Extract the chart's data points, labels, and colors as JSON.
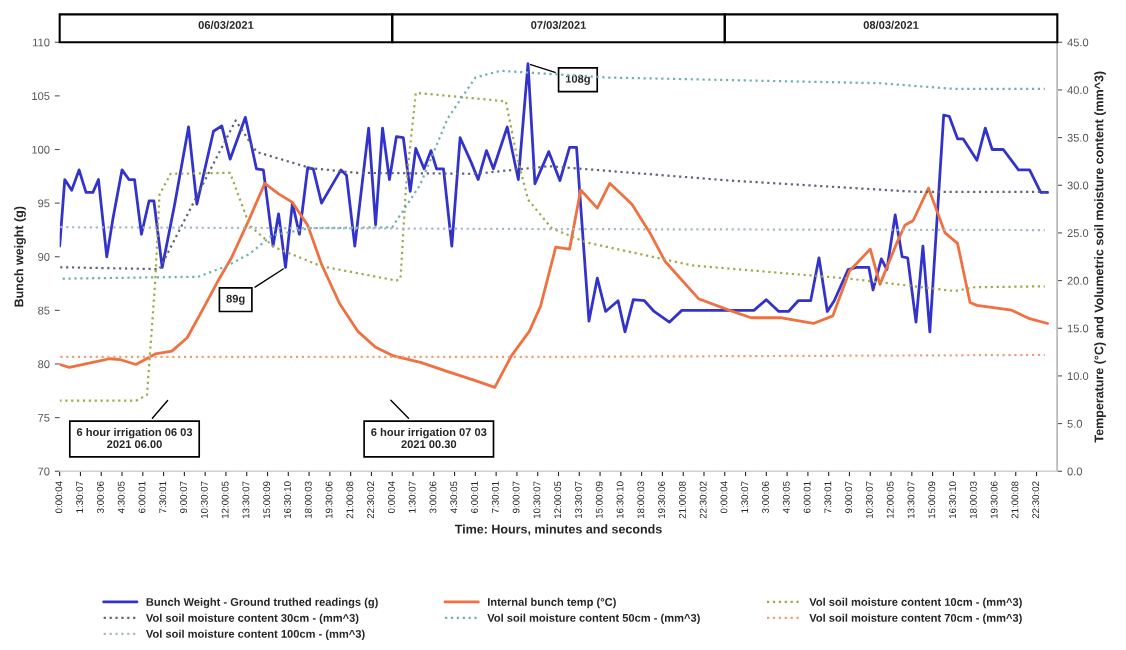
{
  "chart_data": {
    "type": "line",
    "xlabel": "Time: Hours, minutes and seconds",
    "ylabel": "Bunch weight (g)",
    "y2label": "Temperature (°C) and Volumetric soil moisture content (mm^3)",
    "xlim": [
      "2021-03-06T00:00",
      "2021-03-09T00:00"
    ],
    "xticks": [
      {
        "value": "2021-03-06T00:00",
        "label": "0:00:04"
      },
      {
        "value": "2021-03-06T01:30",
        "label": "1:30:07"
      },
      {
        "value": "2021-03-06T03:00",
        "label": "3:00:06"
      },
      {
        "value": "2021-03-06T04:30",
        "label": "4:30:05"
      },
      {
        "value": "2021-03-06T06:00",
        "label": "6:00:01"
      },
      {
        "value": "2021-03-06T07:30",
        "label": "7:30:01"
      },
      {
        "value": "2021-03-06T09:00",
        "label": "9:00:07"
      },
      {
        "value": "2021-03-06T10:30",
        "label": "10:30:07"
      },
      {
        "value": "2021-03-06T12:00",
        "label": "12:00:05"
      },
      {
        "value": "2021-03-06T13:30",
        "label": "13:30:07"
      },
      {
        "value": "2021-03-06T15:00",
        "label": "15:00:09"
      },
      {
        "value": "2021-03-06T16:30",
        "label": "16:30:10"
      },
      {
        "value": "2021-03-06T18:00",
        "label": "18:00:03"
      },
      {
        "value": "2021-03-06T19:30",
        "label": "19:30:06"
      },
      {
        "value": "2021-03-06T21:00",
        "label": "21:00:08"
      },
      {
        "value": "2021-03-06T22:30",
        "label": "22:30:02"
      },
      {
        "value": "2021-03-07T00:00",
        "label": "0:00:04"
      },
      {
        "value": "2021-03-07T01:30",
        "label": "1:30:07"
      },
      {
        "value": "2021-03-07T03:00",
        "label": "3:00:06"
      },
      {
        "value": "2021-03-07T04:30",
        "label": "4:30:05"
      },
      {
        "value": "2021-03-07T06:00",
        "label": "6:00:01"
      },
      {
        "value": "2021-03-07T07:30",
        "label": "7:30:01"
      },
      {
        "value": "2021-03-07T09:00",
        "label": "9:00:07"
      },
      {
        "value": "2021-03-07T10:30",
        "label": "10:30:07"
      },
      {
        "value": "2021-03-07T12:00",
        "label": "12:00:05"
      },
      {
        "value": "2021-03-07T13:30",
        "label": "13:30:07"
      },
      {
        "value": "2021-03-07T15:00",
        "label": "15:00:09"
      },
      {
        "value": "2021-03-07T16:30",
        "label": "16:30:10"
      },
      {
        "value": "2021-03-07T18:00",
        "label": "18:00:03"
      },
      {
        "value": "2021-03-07T19:30",
        "label": "19:30:06"
      },
      {
        "value": "2021-03-07T21:00",
        "label": "21:00:08"
      },
      {
        "value": "2021-03-07T22:30",
        "label": "22:30:02"
      },
      {
        "value": "2021-03-08T00:00",
        "label": "0:00:04"
      },
      {
        "value": "2021-03-08T01:30",
        "label": "1:30:07"
      },
      {
        "value": "2021-03-08T03:00",
        "label": "3:00:06"
      },
      {
        "value": "2021-03-08T04:30",
        "label": "4:30:05"
      },
      {
        "value": "2021-03-08T06:00",
        "label": "6:00:01"
      },
      {
        "value": "2021-03-08T07:30",
        "label": "7:30:01"
      },
      {
        "value": "2021-03-08T09:00",
        "label": "9:00:07"
      },
      {
        "value": "2021-03-08T10:30",
        "label": "10:30:07"
      },
      {
        "value": "2021-03-08T12:00",
        "label": "12:00:05"
      },
      {
        "value": "2021-03-08T13:30",
        "label": "13:30:07"
      },
      {
        "value": "2021-03-08T15:00",
        "label": "15:00:09"
      },
      {
        "value": "2021-03-08T16:30",
        "label": "16:30:10"
      },
      {
        "value": "2021-03-08T18:00",
        "label": "18:00:03"
      },
      {
        "value": "2021-03-08T19:30",
        "label": "19:30:06"
      },
      {
        "value": "2021-03-08T21:00",
        "label": "21:00:08"
      },
      {
        "value": "2021-03-08T22:30",
        "label": "22:30:02"
      }
    ],
    "x2lim": [
      "2021-03-06T00:00",
      "2021-03-09T00:00"
    ],
    "x2ticks": [
      {
        "value": "2021-03-06T12:00",
        "label": "06/03/2021"
      },
      {
        "value": "2021-03-07T12:00",
        "label": "07/03/2021"
      },
      {
        "value": "2021-03-08T12:00",
        "label": "08/03/2021"
      }
    ],
    "ylim": [
      70,
      110
    ],
    "yticks": [
      70,
      75,
      80,
      85,
      90,
      95,
      100,
      105,
      110
    ],
    "y2lim": [
      0,
      45
    ],
    "y2ticks": [
      {
        "value": 0,
        "label": "0.0"
      },
      {
        "value": 5,
        "label": "5.0"
      },
      {
        "value": 10,
        "label": "10.0"
      },
      {
        "value": 15,
        "label": "15.0"
      },
      {
        "value": 20,
        "label": "20.0"
      },
      {
        "value": 25,
        "label": "25.0"
      },
      {
        "value": 30,
        "label": "30.0"
      },
      {
        "value": 35,
        "label": "35.0"
      },
      {
        "value": 40,
        "label": "40.0"
      },
      {
        "value": 45,
        "label": "45.0"
      }
    ],
    "annotations": [
      {
        "text": "89g",
        "x": "2021-03-06T16:18",
        "y": 89
      },
      {
        "text": "108g",
        "x": "2021-03-07T09:48",
        "y": 108
      },
      "6 hour irrigation 06 03\n2021 06.00",
      "6 hour irrigation 07 03\n2021 00.30"
    ],
    "legend": "bottom",
    "grid": false,
    "series": [
      {
        "name": "Bunch Weight - Ground truthed readings (g)",
        "color": "#3333cc",
        "line_style": "solid",
        "x": [
          "2021-03-06T00:00",
          "2021-03-06T00:22",
          "2021-03-06T00:52",
          "2021-03-06T01:24",
          "2021-03-06T01:54",
          "2021-03-06T02:24",
          "2021-03-06T02:48",
          "2021-03-06T03:24",
          "2021-03-06T03:51",
          "2021-03-06T04:30",
          "2021-03-06T05:00",
          "2021-03-06T05:24",
          "2021-03-06T05:54",
          "2021-03-06T06:27",
          "2021-03-06T06:48",
          "2021-03-06T07:24",
          "2021-03-06T08:18",
          "2021-03-06T09:18",
          "2021-03-06T09:54",
          "2021-03-06T11:06",
          "2021-03-06T11:42",
          "2021-03-06T12:18",
          "2021-03-06T13:24",
          "2021-03-06T14:12",
          "2021-03-06T14:42",
          "2021-03-06T15:24",
          "2021-03-06T15:48",
          "2021-03-06T16:18",
          "2021-03-06T16:48",
          "2021-03-06T17:18",
          "2021-03-06T17:54",
          "2021-03-06T18:18",
          "2021-03-06T18:54",
          "2021-03-06T20:18",
          "2021-03-06T20:42",
          "2021-03-06T21:18",
          "2021-03-06T22:18",
          "2021-03-06T22:48",
          "2021-03-06T23:18",
          "2021-03-06T23:48",
          "2021-03-07T00:18",
          "2021-03-07T00:48",
          "2021-03-07T01:18",
          "2021-03-07T01:42",
          "2021-03-07T02:18",
          "2021-03-07T02:48",
          "2021-03-07T03:12",
          "2021-03-07T03:42",
          "2021-03-07T04:18",
          "2021-03-07T04:54",
          "2021-03-07T05:42",
          "2021-03-07T06:12",
          "2021-03-07T06:48",
          "2021-03-07T07:18",
          "2021-03-07T08:18",
          "2021-03-07T09:06",
          "2021-03-07T09:48",
          "2021-03-07T10:18",
          "2021-03-07T11:18",
          "2021-03-07T12:06",
          "2021-03-07T12:48",
          "2021-03-07T13:18",
          "2021-03-07T14:12",
          "2021-03-07T14:48",
          "2021-03-07T15:24",
          "2021-03-07T16:18",
          "2021-03-07T16:48",
          "2021-03-07T17:24",
          "2021-03-07T18:12",
          "2021-03-07T18:54",
          "2021-03-07T20:00",
          "2021-03-07T20:54",
          "2021-03-08T01:24",
          "2021-03-08T02:06",
          "2021-03-08T03:00",
          "2021-03-08T03:54",
          "2021-03-08T04:36",
          "2021-03-08T05:18",
          "2021-03-08T06:12",
          "2021-03-08T06:48",
          "2021-03-08T07:24",
          "2021-03-08T07:54",
          "2021-03-08T08:54",
          "2021-03-08T09:30",
          "2021-03-08T10:24",
          "2021-03-08T10:42",
          "2021-03-08T11:18",
          "2021-03-08T11:42",
          "2021-03-08T12:18",
          "2021-03-08T12:48",
          "2021-03-08T13:12",
          "2021-03-08T13:48",
          "2021-03-08T14:18",
          "2021-03-08T14:48",
          "2021-03-08T15:48",
          "2021-03-08T16:12",
          "2021-03-08T16:48",
          "2021-03-08T17:12",
          "2021-03-08T18:12",
          "2021-03-08T18:48",
          "2021-03-08T19:18",
          "2021-03-08T20:06",
          "2021-03-08T21:12",
          "2021-03-08T22:00",
          "2021-03-08T22:48",
          "2021-03-08T23:18"
        ],
        "values": [
          91,
          97.2,
          96.2,
          98.1,
          96,
          96,
          97.2,
          90,
          93.6,
          98.1,
          97.2,
          97.2,
          92.1,
          95.2,
          95.2,
          89,
          94.9,
          102.1,
          94.9,
          101.7,
          102.2,
          99.1,
          103,
          98.2,
          98.1,
          91,
          94,
          89,
          95,
          92.1,
          98.3,
          98.2,
          95,
          98.1,
          97.6,
          91,
          102,
          93,
          102,
          97.2,
          101.2,
          101.1,
          96.1,
          100.1,
          98.2,
          99.9,
          98.2,
          98.2,
          91,
          101.1,
          98.8,
          97.2,
          99.9,
          98.2,
          102.1,
          97.2,
          108,
          96.8,
          99.8,
          97.1,
          100.2,
          100.2,
          84,
          88,
          84.9,
          85.9,
          83,
          86,
          85.9,
          84.9,
          83.9,
          85,
          85,
          85,
          86,
          84.9,
          84.9,
          85.9,
          85.9,
          89.9,
          84.9,
          85.9,
          88.8,
          89,
          89,
          86.9,
          89.8,
          88.8,
          93.9,
          90,
          89.9,
          83.9,
          91,
          83,
          103.2,
          103.1,
          101,
          101,
          99,
          102,
          100,
          100,
          98.1,
          98.1,
          96,
          96
        ]
      },
      {
        "name": "Internal bunch temp (°C)",
        "color": "#f07040",
        "line_style": "solid",
        "axis": "y2",
        "x": [
          "2021-03-06T00:00",
          "2021-03-06T00:42",
          "2021-03-06T02:18",
          "2021-03-06T03:36",
          "2021-03-06T04:24",
          "2021-03-06T05:30",
          "2021-03-06T06:54",
          "2021-03-06T08:06",
          "2021-03-06T09:12",
          "2021-03-06T10:18",
          "2021-03-06T11:24",
          "2021-03-06T12:24",
          "2021-03-06T13:42",
          "2021-03-06T14:48",
          "2021-03-06T15:48",
          "2021-03-06T16:48",
          "2021-03-06T17:54",
          "2021-03-06T18:54",
          "2021-03-06T20:12",
          "2021-03-06T21:30",
          "2021-03-06T22:48",
          "2021-03-07T00:06",
          "2021-03-07T02:06",
          "2021-03-07T03:54",
          "2021-03-07T06:00",
          "2021-03-07T07:24",
          "2021-03-07T08:36",
          "2021-03-07T09:54",
          "2021-03-07T10:42",
          "2021-03-07T11:48",
          "2021-03-07T12:48",
          "2021-03-07T13:36",
          "2021-03-07T14:48",
          "2021-03-07T15:42",
          "2021-03-07T17:18",
          "2021-03-07T18:36",
          "2021-03-07T19:42",
          "2021-03-07T22:06",
          "2021-03-08T00:18",
          "2021-03-08T01:54",
          "2021-03-08T04:06",
          "2021-03-08T06:24",
          "2021-03-08T07:48",
          "2021-03-08T09:00",
          "2021-03-08T10:30",
          "2021-03-08T11:12",
          "2021-03-08T12:24",
          "2021-03-08T13:00",
          "2021-03-08T13:36",
          "2021-03-08T14:42",
          "2021-03-08T15:54",
          "2021-03-08T16:48",
          "2021-03-08T17:42",
          "2021-03-08T18:12",
          "2021-03-08T20:42",
          "2021-03-08T22:00",
          "2021-03-08T23:18"
        ],
        "values": [
          11.2,
          10.9,
          11.4,
          11.8,
          11.7,
          11.2,
          12.3,
          12.6,
          14,
          16.9,
          19.9,
          22.4,
          26.5,
          30.2,
          29.1,
          28.2,
          25.8,
          21.7,
          17.6,
          14.7,
          13,
          12.1,
          11.4,
          10.5,
          9.5,
          8.8,
          12.1,
          14.7,
          17.3,
          23.5,
          23.3,
          29.5,
          27.6,
          30.2,
          28,
          25,
          22,
          18.1,
          16.9,
          16.1,
          16.1,
          15.5,
          16.3,
          21,
          23.3,
          19.6,
          23.9,
          25.8,
          26.3,
          29.7,
          25,
          23.9,
          17.7,
          17.4,
          16.9,
          16,
          15.5
        ]
      },
      {
        "name": "Vol soil moisture content 10cm - (mm^3)",
        "color": "#a3a84a",
        "line_style": "dotted",
        "axis": "y2",
        "x": [
          "2021-03-06T00:00",
          "2021-03-06T05:30",
          "2021-03-06T06:18",
          "2021-03-06T06:54",
          "2021-03-06T07:12",
          "2021-03-06T08:00",
          "2021-03-06T12:18",
          "2021-03-06T13:42",
          "2021-03-06T15:30",
          "2021-03-06T18:54",
          "2021-03-07T00:18",
          "2021-03-07T00:36",
          "2021-03-07T01:00",
          "2021-03-07T01:42",
          "2021-03-07T08:12",
          "2021-03-07T09:00",
          "2021-03-07T09:48",
          "2021-03-07T11:30",
          "2021-03-07T14:00",
          "2021-03-07T21:36",
          "2021-03-08T09:00",
          "2021-03-08T16:36",
          "2021-03-08T18:00",
          "2021-03-08T23:06"
        ],
        "values": [
          7.4,
          7.4,
          8,
          20,
          29,
          31.2,
          31.3,
          25.8,
          23.5,
          21.5,
          20,
          20.2,
          30,
          39.7,
          38.8,
          33,
          28.5,
          25.5,
          24,
          21.6,
          20.2,
          18.9,
          19.3,
          19.4
        ]
      },
      {
        "name": "Vol soil moisture content 30cm - (mm^3)",
        "color": "#5c6478",
        "line_style": "dotted",
        "axis": "y2",
        "x": [
          "2021-03-06T00:00",
          "2021-03-06T07:12",
          "2021-03-06T12:42",
          "2021-03-06T14:12",
          "2021-03-06T18:06",
          "2021-03-06T21:30",
          "2021-03-07T06:00",
          "2021-03-07T11:18",
          "2021-03-08T00:18",
          "2021-03-08T13:54",
          "2021-03-08T23:06"
        ],
        "values": [
          21.4,
          21.2,
          36.8,
          33.5,
          31.8,
          31.3,
          31.2,
          32,
          30.5,
          29.3,
          29.3
        ]
      },
      {
        "name": "Vol soil moisture content 50cm - (mm^3)",
        "color": "#6fb0b0",
        "line_style": "dotted",
        "axis": "y2",
        "x": [
          "2021-03-06T00:00",
          "2021-03-06T10:00",
          "2021-03-06T12:00",
          "2021-03-06T13:42",
          "2021-03-06T15:18",
          "2021-03-06T18:00",
          "2021-03-07T00:00",
          "2021-03-07T02:00",
          "2021-03-07T04:00",
          "2021-03-07T06:00",
          "2021-03-07T07:48",
          "2021-03-07T15:36",
          "2021-03-08T11:12",
          "2021-03-08T16:36",
          "2021-03-08T23:06"
        ],
        "values": [
          20.2,
          20.4,
          21.5,
          22.8,
          24.7,
          25.5,
          25.6,
          30,
          37,
          41.3,
          42,
          41.3,
          40.7,
          40.1,
          40.1
        ]
      },
      {
        "name": "Vol soil moisture content 70cm - (mm^3)",
        "color": "#f0a070",
        "line_style": "dotted",
        "axis": "y2",
        "x": [
          "2021-03-06T00:00",
          "2021-03-07T12:00",
          "2021-03-08T23:06"
        ],
        "values": [
          12,
          12,
          12.2
        ]
      },
      {
        "name": "Vol soil moisture content 100cm - (mm^3)",
        "color": "#a8b8cc",
        "line_style": "dotted",
        "axis": "y2",
        "x": [
          "2021-03-06T00:00",
          "2021-03-07T12:00",
          "2021-03-08T23:06"
        ],
        "values": [
          25.6,
          25.4,
          25.3
        ]
      }
    ]
  }
}
